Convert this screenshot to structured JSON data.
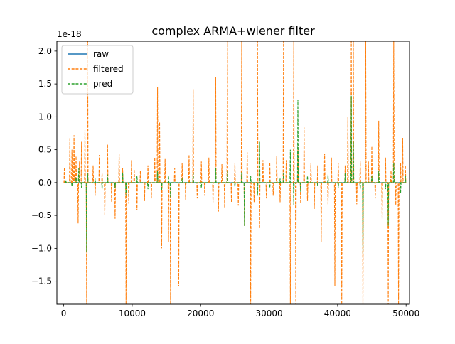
{
  "chart_data": {
    "type": "line",
    "title": "complex ARMA+wiener filter",
    "xlabel": "",
    "ylabel": "",
    "y_offset_label": "1e-18",
    "xlim": [
      -1000,
      50500
    ],
    "ylim": [
      -1.85,
      2.15
    ],
    "x_ticks": [
      0,
      10000,
      20000,
      30000,
      40000,
      50000
    ],
    "x_tick_labels": [
      "0",
      "10000",
      "20000",
      "30000",
      "40000",
      "50000"
    ],
    "y_ticks": [
      -1.5,
      -1.0,
      -0.5,
      0.0,
      0.5,
      1.0,
      1.5,
      2.0
    ],
    "y_tick_labels": [
      "−1.5",
      "−1.0",
      "−0.5",
      "0.0",
      "0.5",
      "1.0",
      "1.5",
      "2.0"
    ],
    "grid": false,
    "legend_position": "top-left",
    "series": [
      {
        "name": "raw",
        "color": "#1f77b4",
        "dash": "solid",
        "x": [
          0,
          50000
        ],
        "y": [
          0.0,
          0.0
        ]
      },
      {
        "name": "filtered",
        "color": "#ff7f0e",
        "dash": "dashed",
        "x": [
          100,
          900,
          1200,
          1500,
          1800,
          2100,
          2300,
          2600,
          3100,
          3350,
          3500,
          4300,
          4600,
          5200,
          5600,
          6000,
          6400,
          7000,
          7500,
          8100,
          8600,
          9100,
          9500,
          9900,
          10300,
          10700,
          11200,
          11800,
          12300,
          12800,
          13300,
          13700,
          14000,
          14300,
          14800,
          15300,
          15600,
          16200,
          16800,
          17300,
          17800,
          18300,
          18900,
          19500,
          20100,
          20600,
          21200,
          21800,
          22200,
          22600,
          23100,
          23500,
          23900,
          24500,
          25000,
          25500,
          26000,
          26400,
          26800,
          27300,
          27800,
          28300,
          28600,
          29100,
          29600,
          30100,
          30600,
          31100,
          31600,
          32100,
          32500,
          33100,
          33600,
          33900,
          34200,
          34600,
          35100,
          35600,
          36100,
          36600,
          37100,
          37600,
          38100,
          38600,
          39100,
          39600,
          40100,
          40600,
          41100,
          41500,
          42000,
          42300,
          42800,
          43300,
          43700,
          44100,
          44500,
          45000,
          45500,
          46000,
          46500,
          47000,
          47400,
          47800,
          48200,
          48500,
          48900,
          49200,
          49500,
          49900
        ],
        "y": [
          0.23,
          0.68,
          0.5,
          0.72,
          0.4,
          -0.62,
          0.32,
          0.62,
          0.8,
          -1.85,
          2.15,
          0.26,
          -0.2,
          0.42,
          0.14,
          -0.5,
          0.58,
          -0.3,
          -0.55,
          0.44,
          0.22,
          -1.85,
          -0.32,
          0.34,
          0.2,
          -0.42,
          0.18,
          -0.28,
          0.26,
          -0.24,
          0.38,
          1.45,
          0.92,
          -1.0,
          0.36,
          -0.9,
          -1.85,
          0.22,
          -1.58,
          0.3,
          -0.26,
          0.42,
          1.42,
          -0.24,
          0.32,
          -0.2,
          0.38,
          -0.3,
          1.6,
          -0.44,
          0.28,
          -0.38,
          2.15,
          -0.3,
          0.3,
          -0.35,
          2.15,
          -0.66,
          0.46,
          -1.85,
          -0.3,
          2.15,
          -0.7,
          0.34,
          -0.24,
          0.3,
          -0.2,
          0.4,
          -0.3,
          2.15,
          0.34,
          -1.85,
          2.15,
          -1.85,
          0.54,
          -0.32,
          0.84,
          -0.28,
          0.3,
          -0.4,
          0.26,
          -0.9,
          0.44,
          -0.33,
          0.38,
          -1.58,
          0.3,
          -1.85,
          0.26,
          1.0,
          2.15,
          2.15,
          -0.33,
          0.32,
          -1.85,
          2.15,
          0.32,
          0.55,
          -0.24,
          0.94,
          -0.55,
          0.38,
          -1.85,
          0.18,
          2.15,
          -0.34,
          -1.85,
          0.3,
          0.68,
          0.26
        ]
      },
      {
        "name": "pred",
        "color": "#2ca02c",
        "dash": "dashed",
        "x": [
          300,
          1200,
          1800,
          2200,
          2600,
          3350,
          3500,
          4600,
          5600,
          6400,
          7500,
          8600,
          9100,
          10700,
          12300,
          13700,
          14300,
          15300,
          15600,
          17300,
          18900,
          20100,
          22200,
          23900,
          25000,
          26000,
          26400,
          27300,
          28300,
          28600,
          30100,
          31600,
          32100,
          33100,
          33600,
          34200,
          34600,
          35600,
          37100,
          38600,
          40100,
          41100,
          42000,
          42300,
          43300,
          43700,
          45000,
          46000,
          47000,
          47400,
          48200,
          49200,
          49900
        ],
        "y": [
          0.04,
          -0.06,
          0.08,
          0.22,
          -0.08,
          -1.06,
          0.14,
          0.06,
          -0.1,
          0.12,
          -0.08,
          0.16,
          -0.2,
          0.1,
          -0.1,
          0.18,
          -0.12,
          0.1,
          -0.22,
          0.06,
          0.14,
          -0.08,
          0.22,
          0.18,
          -0.06,
          0.16,
          -0.66,
          0.1,
          -0.2,
          0.62,
          -0.08,
          0.06,
          0.14,
          0.5,
          -0.34,
          1.26,
          -0.14,
          0.1,
          -0.06,
          0.12,
          -0.08,
          0.14,
          1.32,
          0.62,
          -0.1,
          -1.08,
          0.1,
          0.18,
          -0.1,
          -0.66,
          0.3,
          -0.16,
          0.1
        ]
      }
    ]
  }
}
